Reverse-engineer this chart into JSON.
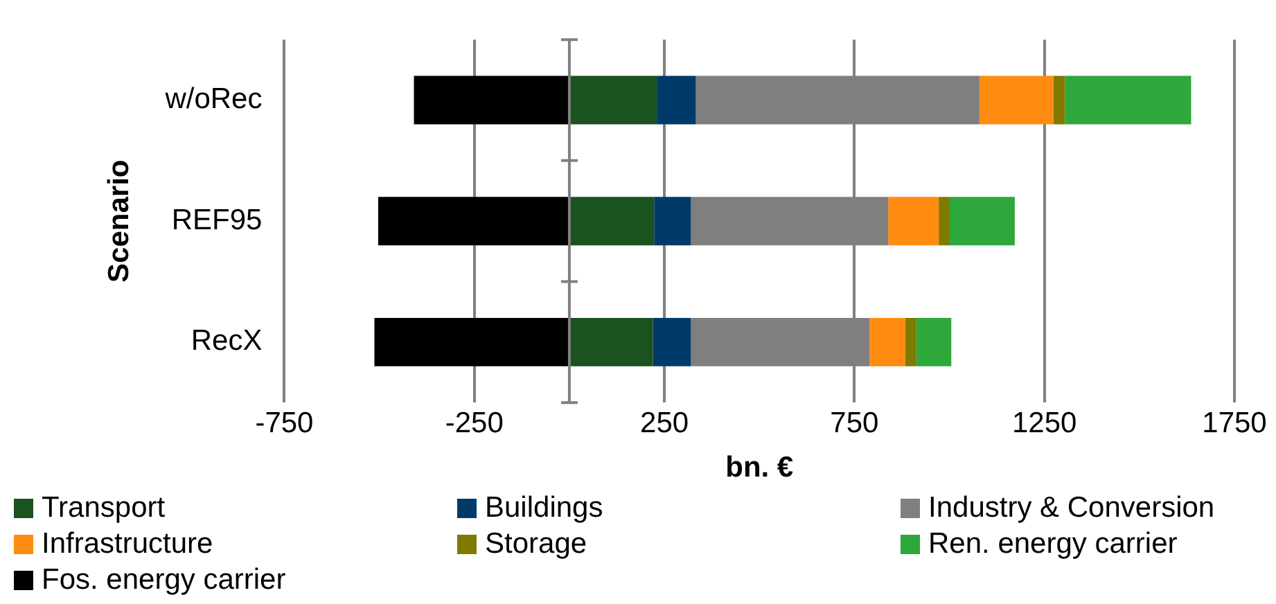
{
  "chart_data": {
    "type": "bar",
    "orientation": "horizontal",
    "stacked": true,
    "ylabel": "Scenario",
    "xlabel": "bn. €",
    "categories": [
      "w/oRec",
      "REF95",
      "RecX"
    ],
    "series": [
      {
        "name": "Transport",
        "color": "#1a5220",
        "values": [
          230,
          223,
          220
        ]
      },
      {
        "name": "Buildings",
        "color": "#003a6b",
        "values": [
          103,
          97,
          100
        ]
      },
      {
        "name": "Industry & Conversion",
        "color": "#7f7f7f",
        "values": [
          746,
          519,
          470
        ]
      },
      {
        "name": "Infrastructure",
        "color": "#ff8c10",
        "values": [
          195,
          133,
          94
        ]
      },
      {
        "name": "Storage",
        "color": "#7f7a00",
        "values": [
          30,
          27,
          29
        ]
      },
      {
        "name": "Ren. energy carrier",
        "color": "#2ea83a",
        "values": [
          332,
          173,
          92
        ]
      },
      {
        "name": "Fos. energy carrier",
        "color": "#000000",
        "values": [
          -409,
          -503,
          -513
        ]
      }
    ],
    "xlim": [
      -750,
      1750
    ],
    "xticks": [
      -750,
      -250,
      250,
      750,
      1250,
      1750
    ],
    "grid": "x",
    "legend": "bottom"
  }
}
